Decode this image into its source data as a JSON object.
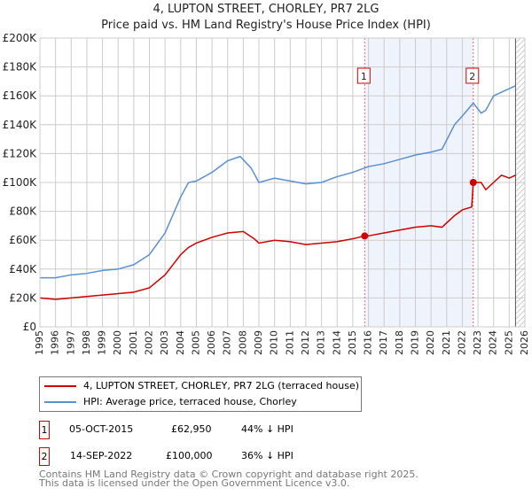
{
  "chart_data": {
    "type": "line",
    "title": "4, LUPTON STREET, CHORLEY, PR7 2LG",
    "subtitle": "Price paid vs. HM Land Registry's House Price Index (HPI)",
    "xlim": [
      1995,
      2026
    ],
    "ylim": [
      0,
      200000
    ],
    "x_ticks": [
      "1995",
      "1996",
      "1997",
      "1998",
      "1999",
      "2000",
      "2001",
      "2002",
      "2003",
      "2004",
      "2005",
      "2006",
      "2007",
      "2008",
      "2009",
      "2010",
      "2011",
      "2012",
      "2013",
      "2014",
      "2015",
      "2016",
      "2017",
      "2018",
      "2019",
      "2020",
      "2021",
      "2022",
      "2023",
      "2024",
      "2025",
      "2026"
    ],
    "y_ticks": [
      {
        "v": 0,
        "l": "£0"
      },
      {
        "v": 20000,
        "l": "£20K"
      },
      {
        "v": 40000,
        "l": "£40K"
      },
      {
        "v": 60000,
        "l": "£60K"
      },
      {
        "v": 80000,
        "l": "£80K"
      },
      {
        "v": 100000,
        "l": "£100K"
      },
      {
        "v": 120000,
        "l": "£120K"
      },
      {
        "v": 140000,
        "l": "£140K"
      },
      {
        "v": 160000,
        "l": "£160K"
      },
      {
        "v": 180000,
        "l": "£180K"
      },
      {
        "v": 200000,
        "l": "£200K"
      }
    ],
    "grid": true,
    "series": [
      {
        "name": "4, LUPTON STREET, CHORLEY, PR7 2LG (terraced house)",
        "color": "#cc0000",
        "x": [
          1995,
          1996,
          1997,
          1998,
          1999,
          2000,
          2001,
          2002,
          2003,
          2004,
          2004.5,
          2005,
          2006,
          2007,
          2008,
          2008.7,
          2009,
          2010,
          2011,
          2012,
          2013,
          2014,
          2015,
          2015.76,
          2016,
          2017,
          2018,
          2019,
          2020,
          2020.7,
          2021.5,
          2022,
          2022.6,
          2022.7,
          2023.2,
          2023.5,
          2024,
          2024.5,
          2025,
          2025.4
        ],
        "y": [
          20000,
          19000,
          20000,
          21000,
          22000,
          23000,
          24000,
          27000,
          36000,
          50000,
          55000,
          58000,
          62000,
          65000,
          66000,
          61000,
          58000,
          60000,
          59000,
          57000,
          58000,
          59000,
          61000,
          62950,
          63000,
          65000,
          67000,
          69000,
          70000,
          69000,
          77000,
          81000,
          83000,
          100000,
          100000,
          95000,
          100000,
          105000,
          103000,
          105000
        ]
      },
      {
        "name": "HPI: Average price, terraced house, Chorley",
        "color": "#5b8fd0",
        "x": [
          1995,
          1996,
          1997,
          1998,
          1999,
          2000,
          2001,
          2002,
          2003,
          2004,
          2004.5,
          2005,
          2006,
          2007,
          2007.8,
          2008.5,
          2009,
          2010,
          2011,
          2012,
          2013,
          2014,
          2015,
          2016,
          2017,
          2018,
          2019,
          2020,
          2020.7,
          2021.5,
          2022,
          2022.7,
          2023.2,
          2023.5,
          2024,
          2025,
          2025.4
        ],
        "y": [
          34000,
          34000,
          36000,
          37000,
          39000,
          40000,
          43000,
          50000,
          65000,
          90000,
          100000,
          101000,
          107000,
          115000,
          118000,
          110000,
          100000,
          103000,
          101000,
          99000,
          100000,
          104000,
          107000,
          111000,
          113000,
          116000,
          119000,
          121000,
          123000,
          140000,
          146000,
          155000,
          148000,
          150000,
          160000,
          165000,
          167000
        ]
      }
    ],
    "annotations": [
      {
        "label": "1",
        "x": 2015.76,
        "y": 62950
      },
      {
        "label": "2",
        "x": 2022.7,
        "y": 100000
      }
    ],
    "shaded_range": [
      2015.76,
      2022.7
    ],
    "hatched_from": 2025.4
  },
  "legend": {
    "items": [
      "4, LUPTON STREET, CHORLEY, PR7 2LG (terraced house)",
      "HPI: Average price, terraced house, Chorley"
    ]
  },
  "transactions": [
    {
      "num": "1",
      "date": "05-OCT-2015",
      "price": "£62,950",
      "hpi": "44% ↓ HPI"
    },
    {
      "num": "2",
      "date": "14-SEP-2022",
      "price": "£100,000",
      "hpi": "36% ↓ HPI"
    }
  ],
  "footer": [
    "Contains HM Land Registry data © Crown copyright and database right 2025.",
    "This data is licensed under the Open Government Licence v3.0."
  ]
}
